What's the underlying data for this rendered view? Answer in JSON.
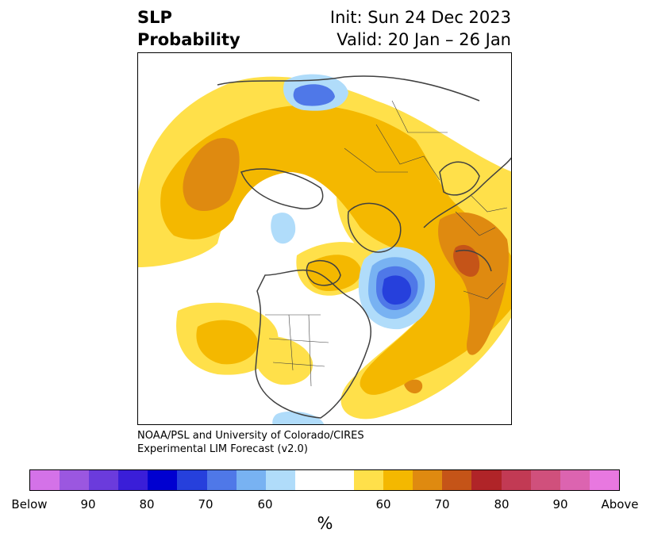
{
  "title": {
    "left_line1": "SLP",
    "left_line2": "Probability",
    "right_line1": "Init: Sun 24 Dec 2023",
    "right_line2": "Valid: 20 Jan – 26 Jan"
  },
  "credit": {
    "line1": "NOAA/PSL and University of Colorado/CIRES",
    "line2": "Experimental LIM Forecast (v2.0)"
  },
  "colorbar": {
    "colors": [
      "#d472e8",
      "#9b57e0",
      "#6b3bdc",
      "#3a1ed8",
      "#0000d0",
      "#2640dc",
      "#4f78e8",
      "#78b2f2",
      "#b0dcfa",
      "#ffffff",
      "#ffe04a",
      "#f4b800",
      "#df8a10",
      "#c55418",
      "#b02428",
      "#c23a54",
      "#d0507c",
      "#dc64b0",
      "#e878e0"
    ],
    "tick_labels": [
      "Below",
      "90",
      "80",
      "70",
      "60",
      "60",
      "70",
      "80",
      "90",
      "Above"
    ],
    "label": "%"
  },
  "map": {
    "projection": "north-polar-stereographic",
    "legend_colors": {
      "above_60": "#ffe04a",
      "above_65": "#f4b800",
      "above_70": "#df8a10",
      "above_75": "#c55418",
      "below_60": "#b0dcfa",
      "below_65": "#78b2f2",
      "below_70": "#4f78e8",
      "below_75": "#2640dc",
      "border_color": "#404040"
    }
  }
}
